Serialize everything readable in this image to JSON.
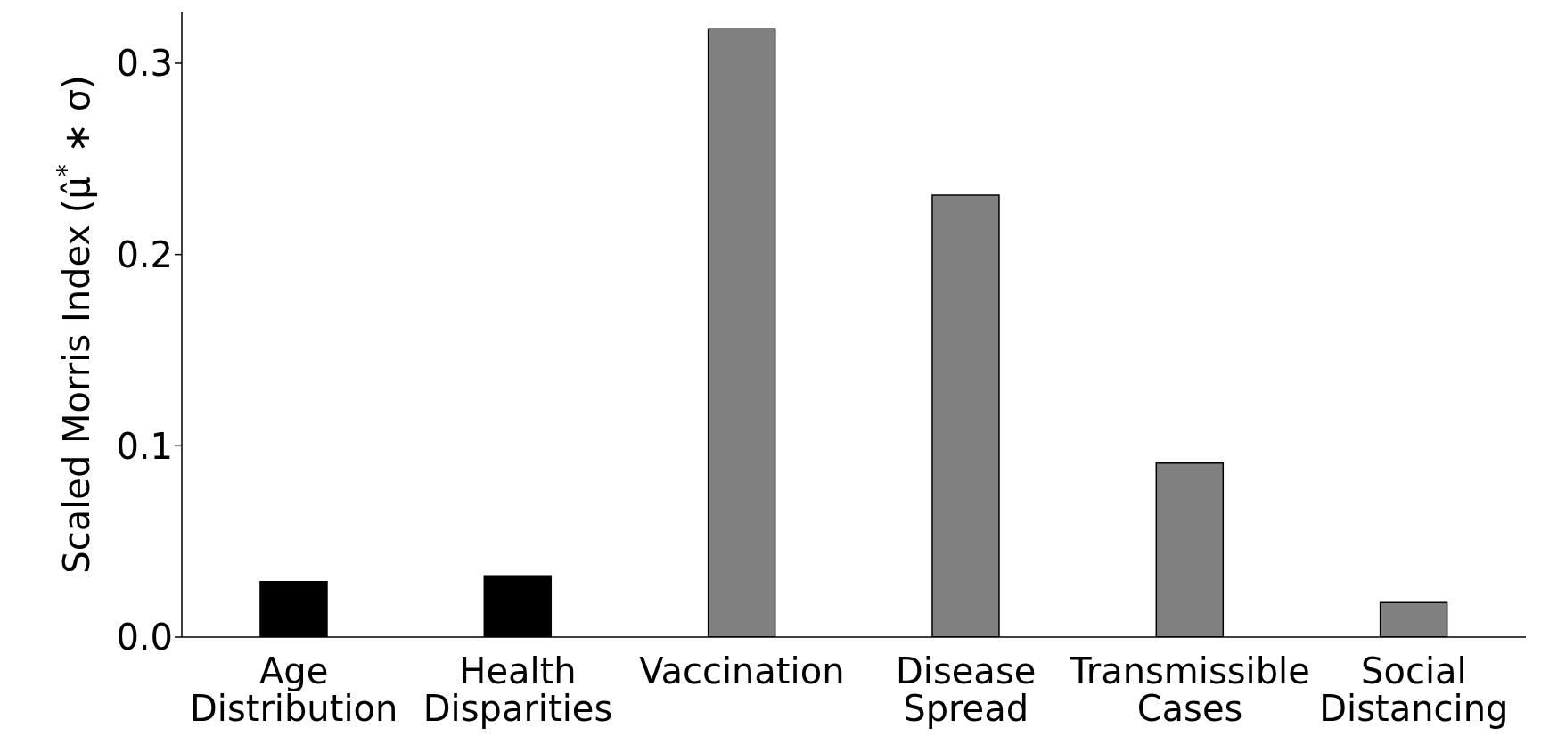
{
  "chart_data": {
    "type": "bar",
    "ylabel": "Scaled Morris Index (μ̂$^{*}$ ∗ σ)",
    "categories": [
      "Age Distribution",
      "Health Disparities",
      "Vaccination",
      "Disease Spread",
      "Transmissible Cases",
      "Social Distancing"
    ],
    "values": [
      0.029,
      0.032,
      0.318,
      0.231,
      0.091,
      0.018
    ],
    "colors": [
      "#000000",
      "#000000",
      "#808080",
      "#808080",
      "#808080",
      "#808080"
    ],
    "ylim": [
      0,
      0.327
    ],
    "yticks": [
      {
        "value": 0,
        "label": "0.0"
      },
      {
        "value": 0.1,
        "label": "0.1"
      },
      {
        "value": 0.2,
        "label": "0.2"
      },
      {
        "value": 0.3,
        "label": "0.3"
      }
    ],
    "grid": false
  }
}
